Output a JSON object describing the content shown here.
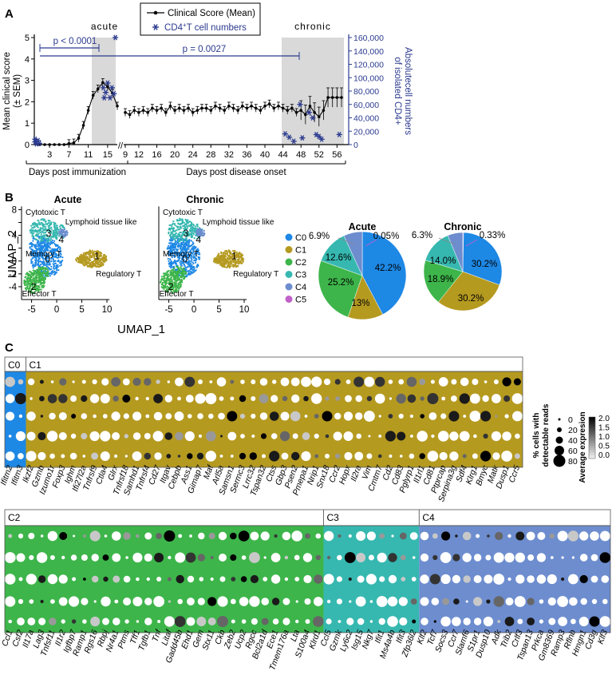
{
  "panels": {
    "a": "A",
    "b": "B",
    "c": "C"
  },
  "chart_data": [
    {
      "type": "line",
      "panel": "A",
      "series": [
        {
          "name": "Clinical Score (Mean)",
          "axis": "left",
          "x": [
            1,
            2,
            3,
            4,
            5,
            6,
            7,
            8,
            9,
            10,
            11,
            12,
            13,
            14,
            15,
            16,
            17
          ],
          "values": [
            0,
            0,
            0,
            0,
            0,
            0,
            0.05,
            0.08,
            0.3,
            0.9,
            1.6,
            2.3,
            2.6,
            2.9,
            2.7,
            2.4,
            1.8
          ]
        },
        {
          "name": "Clinical Score (Mean)",
          "axis": "left",
          "x": [
            9,
            10,
            11,
            12,
            13,
            14,
            15,
            16,
            17,
            18,
            19,
            20,
            21,
            22,
            23,
            24,
            25,
            26,
            27,
            28,
            29,
            30,
            31,
            32,
            33,
            34,
            35,
            36,
            37,
            38,
            39,
            40,
            41,
            42,
            43,
            44,
            45,
            46,
            47,
            48,
            49,
            50,
            51,
            52,
            53,
            54,
            55,
            56,
            57
          ],
          "values": [
            1.5,
            1.4,
            1.6,
            1.5,
            1.6,
            1.5,
            1.7,
            1.6,
            1.7,
            1.5,
            1.8,
            1.6,
            1.7,
            1.6,
            1.7,
            1.5,
            1.6,
            1.7,
            1.7,
            1.6,
            1.8,
            1.7,
            1.6,
            1.8,
            1.7,
            1.6,
            1.8,
            1.7,
            1.8,
            1.7,
            1.6,
            1.8,
            1.9,
            1.7,
            1.8,
            1.7,
            1.6,
            1.7,
            1.5,
            1.6,
            1.4,
            1.8,
            1.5,
            1.3,
            1.6,
            2.2,
            2.2,
            2.2,
            2.2
          ]
        },
        {
          "name": "CD4+T cell numbers",
          "axis": "right",
          "marker": "asterisk",
          "points": [
            [
              0,
              8000
            ],
            [
              0,
              4000
            ],
            [
              0.3,
              1000
            ],
            [
              0.6,
              6000
            ],
            [
              0.9,
              2000
            ],
            [
              14.1,
              85000
            ],
            [
              14.6,
              78000
            ],
            [
              15.0,
              92000
            ],
            [
              15.5,
              70000
            ],
            [
              15.9,
              85000
            ],
            [
              16.3,
              76000
            ],
            [
              16.6,
              160000
            ],
            [
              14.3,
              70000
            ],
            [
              44.5,
              16000
            ],
            [
              45.4,
              11000
            ],
            [
              46.4,
              5000
            ],
            [
              47.8,
              60000
            ],
            [
              48.3,
              10000
            ],
            [
              49.8,
              48000
            ],
            [
              50.6,
              40000
            ],
            [
              51.4,
              15000
            ],
            [
              52.0,
              12000
            ],
            [
              52.6,
              8000
            ],
            [
              56.5,
              15000
            ]
          ]
        }
      ],
      "ylabel_left": "Mean clinical score\n(± SEM)",
      "ylabel_right": "Absolutecell numbers\nof isolated CD4+",
      "ylim_left": [
        0,
        5
      ],
      "ylim_right": [
        0,
        160000
      ],
      "yticks_left": [
        "0",
        "1",
        "2",
        "3",
        "4",
        "5"
      ],
      "yticks_right": [
        "0",
        "20,000",
        "40,000",
        "60,000",
        "80,000",
        "100,000",
        "120,000",
        "140,000",
        "160,000"
      ],
      "xticks_immunization": [
        "3",
        "7",
        "11",
        "15"
      ],
      "xticks_onset": [
        "9",
        "12",
        "16",
        "20",
        "24",
        "28",
        "32",
        "36",
        "40",
        "44",
        "48",
        "52",
        "56"
      ],
      "xlabel_immunization": "Days post immunization",
      "xlabel_onset": "Days post disease onset",
      "regions": [
        "acute",
        "chronic"
      ],
      "legend": [
        "Clinical Score (Mean)",
        "CD4",
        "+",
        "T cell numbers"
      ],
      "annotations": [
        "p < 0.0001",
        "p = 0.0027"
      ]
    },
    {
      "type": "scatter",
      "panel": "B",
      "umap_titles": [
        "Acute",
        "Chronic"
      ],
      "xlabel": "UMAP_1",
      "ylabel": "UMAP_2",
      "xticks": [
        "-5",
        "0",
        "5",
        "10"
      ],
      "yticks": [
        "-4",
        "-2",
        "0",
        "2",
        "4",
        "6",
        "8"
      ],
      "cluster_labels": [
        "0",
        "1",
        "2",
        "3",
        "4"
      ],
      "cluster_names": [
        "Memory T",
        "Regulatory T",
        "Effector T",
        "Cytotoxic T",
        "Lymphoid tissue like"
      ],
      "legend": [
        "C0",
        "C1",
        "C2",
        "C3",
        "C4",
        "C5"
      ]
    },
    {
      "type": "pie",
      "panel": "B",
      "title": "Acute",
      "labels": [
        "C0",
        "C1",
        "C2",
        "C3",
        "C4",
        "C5"
      ],
      "values": [
        42.2,
        13,
        25.2,
        12.6,
        6.9,
        0.05
      ],
      "value_labels": [
        "42.2%",
        "13%",
        "25.2%",
        "12.6%",
        "6.9%",
        "0.05%"
      ]
    },
    {
      "type": "pie",
      "panel": "B",
      "title": "Chronic",
      "labels": [
        "C0",
        "C1",
        "C2",
        "C3",
        "C4",
        "C5"
      ],
      "values": [
        30.2,
        30.2,
        18.9,
        14.0,
        6.3,
        0.33
      ],
      "value_labels": [
        "30.2%",
        "30.2%",
        "18.9%",
        "14.0%",
        "6.3%",
        "0.33%"
      ]
    },
    {
      "type": "dotplot",
      "panel": "C",
      "rows": 6,
      "groups_top": [
        {
          "name": "C0",
          "genes": [
            "Ifitm2",
            "Ifitm3"
          ]
        },
        {
          "name": "C1",
          "genes": [
            "Ikzf2",
            "Gzmb",
            "Izumo1r",
            "Foxp3",
            "Ighm",
            "Ifi27l2a",
            "Tnfrsf9",
            "Ctla4",
            "Glrx",
            "Tnfrsf18",
            "Samhd1",
            "Tnfrsf4",
            "Cd27",
            "Itgav",
            "Cebpb",
            "Ass1",
            "Gimap7",
            "Maf",
            "Arl5a",
            "Samsn1",
            "Sermc3",
            "Lrrc32",
            "Tspan32",
            "Ctss",
            "Gbp3",
            "Psen2",
            "Pmepa1",
            "Nrip1",
            "Snx18",
            "Ccr2",
            "Hopx",
            "Il2ra",
            "Vim",
            "Cmtm7",
            "Cd2",
            "Cd83",
            "Pglyrp1",
            "Il1rl1",
            "Cd81",
            "Ptprcap",
            "Serpina3g",
            "Sdf4",
            "Klrg1",
            "Bmyc",
            "Matk",
            "Dusp1",
            "Ccr5"
          ]
        }
      ],
      "groups_bottom": [
        {
          "name": "C2",
          "genes": [
            "Ccl1",
            "Csf2",
            "Il17a",
            "Lag3",
            "Tnfsf11",
            "Il1r2",
            "Igfbp7",
            "Ramp1",
            "Rgs16",
            "Rbpj",
            "Nr4a1",
            "Ptms",
            "Tff1",
            "Tgfb1",
            "Tnf",
            "Litaf",
            "Gadd45b",
            "Ehd1",
            "Gem",
            "Stx11",
            "Ckb",
            "Zeb2",
            "Ucp2",
            "Rgcc",
            "Bcl2a1d",
            "Ece1",
            "Tmem176a",
            "Lta",
            "S100a4",
            "Klrd1"
          ]
        },
        {
          "name": "C3",
          "genes": [
            "Ccl5",
            "Gzmk",
            "Ly6c2",
            "Isg15",
            "Nkg7",
            "Ifit1",
            "Ms4a4b",
            "Ifit3",
            "Zfp36l2"
          ]
        },
        {
          "name": "C4",
          "genes": [
            "Klf2",
            "Tcf7",
            "Socs3",
            "Ccr7",
            "Slamf6",
            "S1pr1",
            "Dusp10",
            "Adk",
            "Trib2",
            "Crlf3",
            "Tspan13",
            "Prkca",
            "Gm8369",
            "Ramp3",
            "Rflnb",
            "Hmgn1",
            "Cd3g",
            "Klf3"
          ]
        }
      ],
      "size_legend_title": "% cells with\ndetectable reads",
      "size_legend": [
        "0",
        "20",
        "40",
        "60",
        "80"
      ],
      "color_legend_title": "Average expresion",
      "color_legend": [
        "2.0",
        "1.5",
        "1.0",
        "0.5",
        "0.0"
      ]
    }
  ],
  "colors": {
    "c0": "#1e88e5",
    "c1": "#b59a20",
    "c2": "#3db54a",
    "c3": "#36b8b0",
    "c4": "#6d8dcf",
    "c5": "#c061c9",
    "series_blue": "#2b3a8f",
    "shade": "#d9d9d9"
  }
}
